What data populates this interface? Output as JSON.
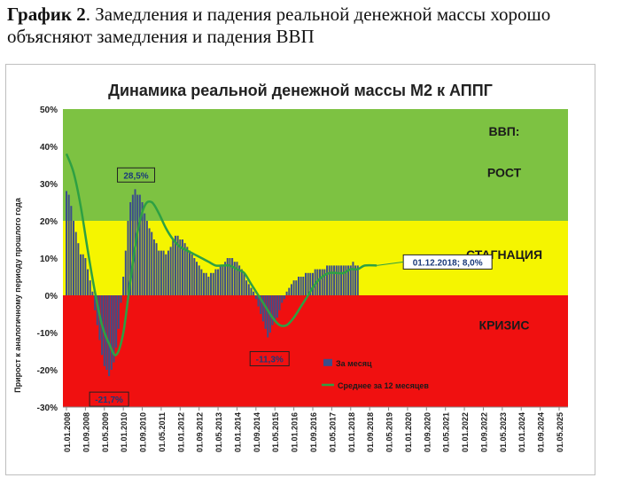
{
  "caption": {
    "prefix": "График 2",
    "text": ". Замедления и падения реальной денежной массы хорошо объясняют замедления и падения ВВП"
  },
  "chart_data": {
    "type": "bar",
    "title": "Динамика реальной денежной массы М2 к АППГ",
    "ylabel": "Прирост к аналогичному периоду прошлого года",
    "ylim": [
      -30,
      50
    ],
    "yticks": [
      "-30%",
      "-20%",
      "-10%",
      "0%",
      "10%",
      "20%",
      "30%",
      "40%",
      "50%"
    ],
    "xticks": [
      "01.01.2008",
      "01.09.2008",
      "01.05.2009",
      "01.01.2010",
      "01.09.2010",
      "01.05.2011",
      "01.01.2012",
      "01.09.2012",
      "01.05.2013",
      "01.01.2014",
      "01.09.2014",
      "01.05.2015",
      "01.01.2016",
      "01.09.2016",
      "01.05.2017",
      "01.01.2018",
      "01.09.2018",
      "01.05.2019",
      "01.01.2020",
      "01.09.2020",
      "01.05.2021",
      "01.01.2022",
      "01.09.2022",
      "01.05.2023",
      "01.01.2024",
      "01.09.2024",
      "01.05.2025"
    ],
    "zones": [
      {
        "label": "ВВП:",
        "from": 20,
        "to": 50,
        "color": "#7dc242"
      },
      {
        "label": "РОСТ",
        "from": 20,
        "to": 50,
        "color": "#7dc242"
      },
      {
        "label": "СТАГНАЦИЯ",
        "from": 0,
        "to": 20,
        "color": "#f5f500"
      },
      {
        "label": "КРИЗИС",
        "from": -30,
        "to": 0,
        "color": "#f01010"
      }
    ],
    "series": [
      {
        "name": "За месяц",
        "type": "bar",
        "color": "#3c4f8a",
        "start": "2008-01",
        "values": [
          28,
          27,
          24,
          20,
          17,
          14,
          11,
          11,
          10,
          7,
          4,
          1,
          -4,
          -8,
          -12,
          -16,
          -19,
          -20,
          -21.7,
          -20,
          -18,
          -14,
          -9,
          -2,
          5,
          12,
          20,
          25,
          27,
          28.5,
          27,
          27,
          25,
          22,
          20,
          18,
          17,
          15,
          14,
          12,
          12,
          12,
          11,
          12,
          13,
          15,
          16,
          16,
          15,
          15,
          14,
          13,
          12,
          11,
          10,
          9,
          8,
          7,
          6,
          6,
          5,
          6,
          6,
          7,
          7,
          8,
          8,
          9,
          10,
          10,
          10,
          9,
          9,
          8,
          7,
          6,
          4,
          3,
          2,
          1,
          -1,
          -3,
          -5,
          -7,
          -9,
          -11.3,
          -10,
          -8,
          -7,
          -6,
          -4,
          -2,
          -1,
          1,
          2,
          3,
          4,
          4,
          5,
          5,
          5,
          6,
          6,
          6,
          6,
          7,
          7,
          7,
          7,
          7,
          8,
          8,
          8,
          8,
          8,
          8,
          8,
          8,
          8,
          8,
          8,
          9,
          8,
          8
        ]
      },
      {
        "name": "Среднее за 12 месяцев",
        "type": "line",
        "color": "#2ea043",
        "points": [
          [
            "2008-01",
            38
          ],
          [
            "2008-04",
            33
          ],
          [
            "2008-07",
            24
          ],
          [
            "2008-10",
            12
          ],
          [
            "2009-01",
            1
          ],
          [
            "2009-04",
            -8
          ],
          [
            "2009-07",
            -13
          ],
          [
            "2009-10",
            -16
          ],
          [
            "2010-01",
            -10
          ],
          [
            "2010-04",
            4
          ],
          [
            "2010-07",
            17
          ],
          [
            "2010-10",
            24
          ],
          [
            "2011-01",
            25
          ],
          [
            "2011-04",
            22
          ],
          [
            "2011-07",
            18
          ],
          [
            "2011-10",
            15
          ],
          [
            "2012-01",
            13
          ],
          [
            "2012-04",
            12
          ],
          [
            "2012-07",
            11
          ],
          [
            "2012-10",
            10
          ],
          [
            "2013-01",
            9
          ],
          [
            "2013-04",
            8
          ],
          [
            "2013-07",
            8
          ],
          [
            "2013-10",
            8
          ],
          [
            "2014-01",
            7
          ],
          [
            "2014-04",
            6
          ],
          [
            "2014-07",
            3
          ],
          [
            "2014-10",
            0
          ],
          [
            "2015-01",
            -3
          ],
          [
            "2015-04",
            -6
          ],
          [
            "2015-07",
            -8
          ],
          [
            "2015-10",
            -8
          ],
          [
            "2016-01",
            -6
          ],
          [
            "2016-04",
            -3
          ],
          [
            "2016-07",
            0
          ],
          [
            "2016-10",
            3
          ],
          [
            "2017-01",
            5
          ],
          [
            "2017-04",
            6
          ],
          [
            "2017-07",
            6
          ],
          [
            "2017-10",
            6
          ],
          [
            "2018-01",
            7
          ],
          [
            "2018-04",
            7
          ],
          [
            "2018-07",
            8
          ],
          [
            "2018-12",
            8
          ]
        ]
      }
    ],
    "annotations": [
      {
        "text": "28,5%",
        "date": "2010-06",
        "value": 28.5,
        "color": "#7dc242"
      },
      {
        "text": "-21,7%",
        "date": "2009-07",
        "value": -21.7,
        "color": "#f01010"
      },
      {
        "text": "-11,3%",
        "date": "2015-02",
        "value": -11.3,
        "color": "#f01010"
      },
      {
        "text": "01.12.2018; 8,0%",
        "date": "2018-12",
        "value": 8,
        "color": "#ffffff"
      }
    ],
    "legend_position": "bottom-center",
    "grid": false
  }
}
